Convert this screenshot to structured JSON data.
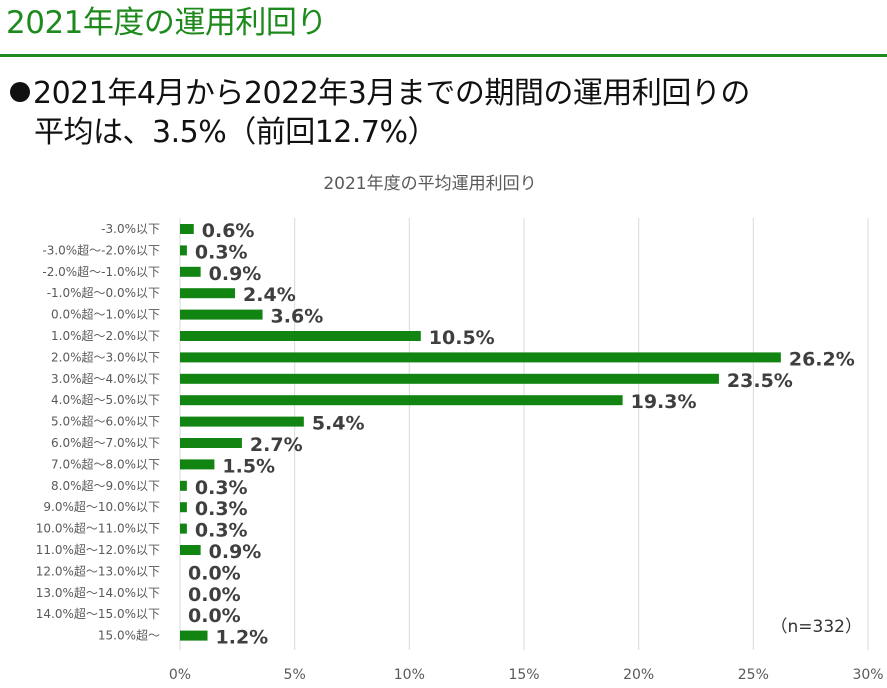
{
  "page": {
    "title": "2021年度の運用利回り",
    "headline_line1": "2021年4月から2022年3月までの期間の運用利回りの",
    "headline_line2": "平均は、3.5%（前回12.7%）"
  },
  "colors": {
    "accent": "#1e8a1e",
    "bar": "#128412",
    "text": "#595959"
  },
  "chart_data": {
    "type": "bar",
    "orientation": "horizontal",
    "title": "2021年度の平均運用利回り",
    "xlabel": "",
    "ylabel": "",
    "categories": [
      "-3.0%以下",
      "-3.0%超～-2.0%以下",
      "-2.0%超～-1.0%以下",
      "-1.0%超～0.0%以下",
      "0.0%超～1.0%以下",
      "1.0%超～2.0%以下",
      "2.0%超～3.0%以下",
      "3.0%超～4.0%以下",
      "4.0%超～5.0%以下",
      "5.0%超～6.0%以下",
      "6.0%超～7.0%以下",
      "7.0%超～8.0%以下",
      "8.0%超～9.0%以下",
      "9.0%超～10.0%以下",
      "10.0%超～11.0%以下",
      "11.0%超～12.0%以下",
      "12.0%超～13.0%以下",
      "13.0%超～14.0%以下",
      "14.0%超～15.0%以下",
      "15.0%超～"
    ],
    "values": [
      0.6,
      0.3,
      0.9,
      2.4,
      3.6,
      10.5,
      26.2,
      23.5,
      19.3,
      5.4,
      2.7,
      1.5,
      0.3,
      0.3,
      0.3,
      0.9,
      0.0,
      0.0,
      0.0,
      1.2
    ],
    "value_labels": [
      "0.6%",
      "0.3%",
      "0.9%",
      "2.4%",
      "3.6%",
      "10.5%",
      "26.2%",
      "23.5%",
      "19.3%",
      "5.4%",
      "2.7%",
      "1.5%",
      "0.3%",
      "0.3%",
      "0.3%",
      "0.9%",
      "0.0%",
      "0.0%",
      "0.0%",
      "1.2%"
    ],
    "xlim": [
      0,
      30
    ],
    "x_ticks": [
      "0%",
      "5%",
      "10%",
      "15%",
      "20%",
      "25%",
      "30%"
    ],
    "grid": "vertical",
    "legend": "none",
    "annotation": "（n=332）"
  }
}
